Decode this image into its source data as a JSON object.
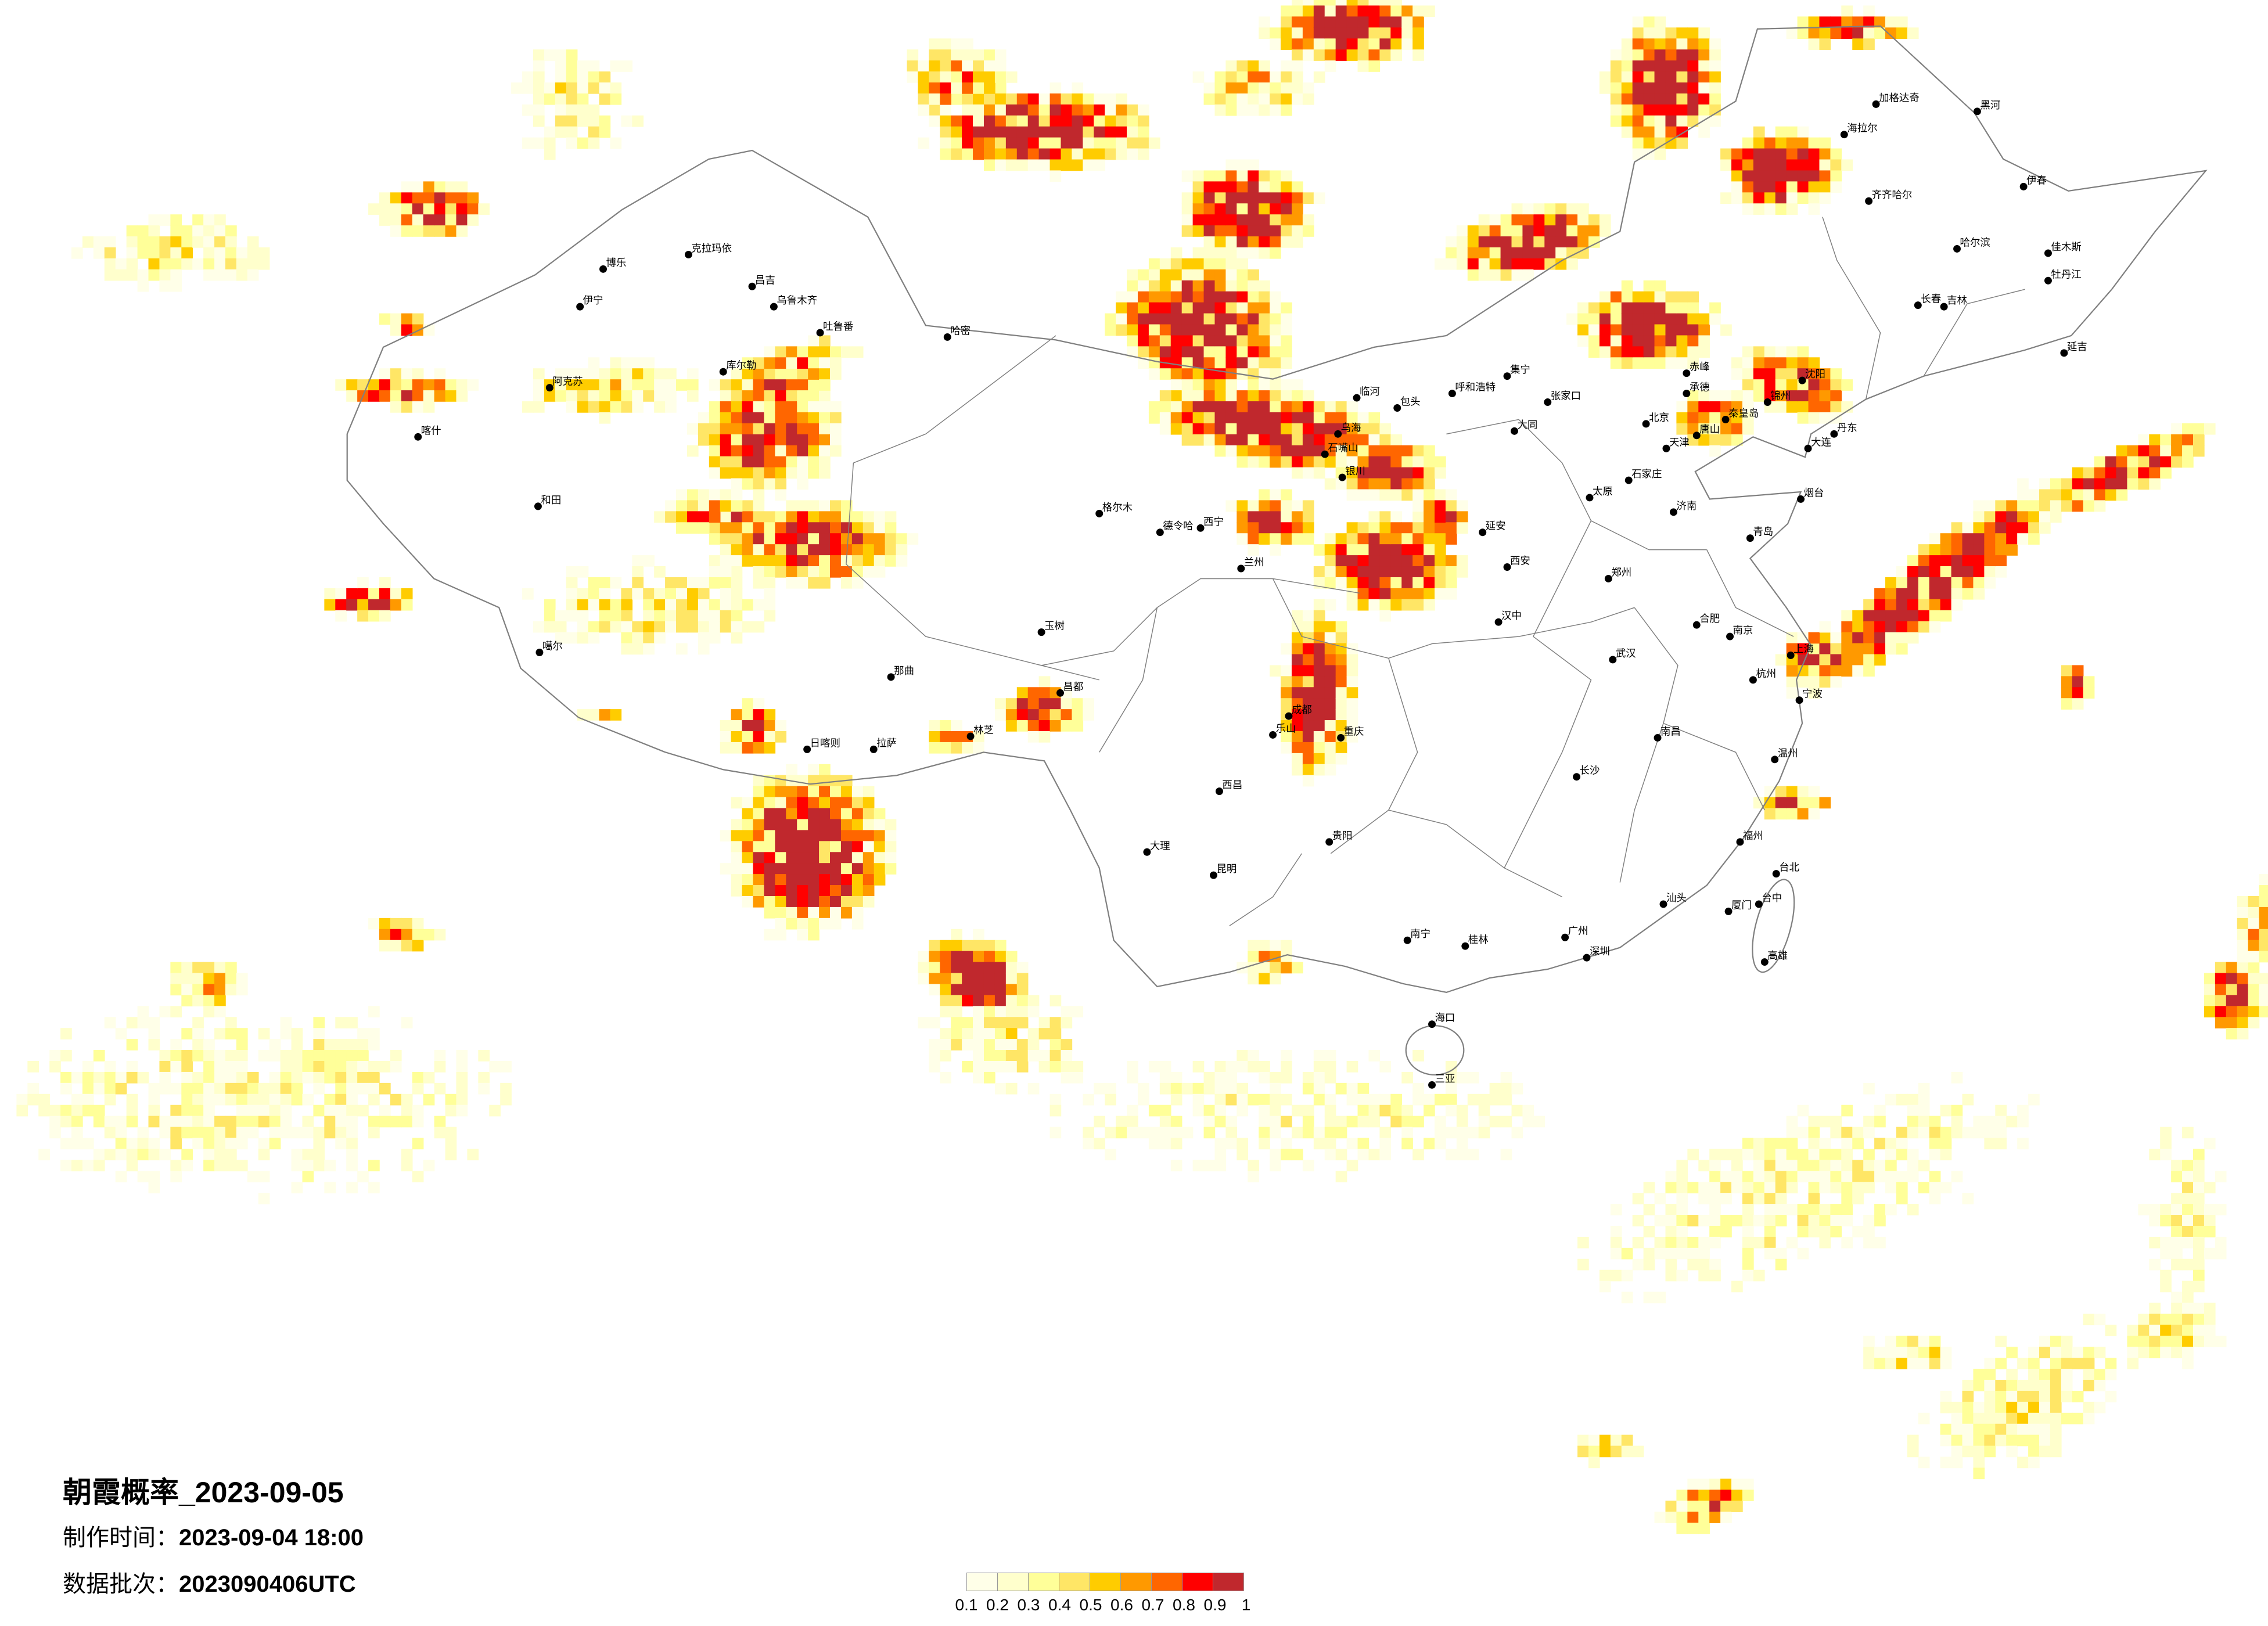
{
  "title": "朝霞概率_2023-09-05",
  "production_time": {
    "label": "制作时间：",
    "value": "2023-09-04 18:00"
  },
  "data_batch": {
    "label": "数据批次：",
    "value": "2023090406UTC"
  },
  "legend": {
    "labels": [
      "0.1",
      "0.2",
      "0.3",
      "0.4",
      "0.5",
      "0.6",
      "0.7",
      "0.8",
      "0.9",
      "1"
    ],
    "colors": [
      "#FFFFE8",
      "#FFFFCC",
      "#FFFF99",
      "#FFE666",
      "#FFCC00",
      "#FF9900",
      "#FF6600",
      "#FF0000",
      "#C0282D"
    ]
  },
  "map": {
    "boundary_color": "#808080",
    "city_marker_color": "#000000",
    "cities": [
      "博乐",
      "伊宁",
      "克拉玛依",
      "昌吉",
      "乌鲁木齐",
      "吐鲁番",
      "哈密",
      "库尔勒",
      "阿克苏",
      "喀什",
      "和田",
      "噶尔",
      "那曲",
      "拉萨",
      "日喀则",
      "林芝",
      "昌都",
      "玉树",
      "德令哈",
      "格尔木",
      "西宁",
      "兰州",
      "银川",
      "石嘴山",
      "乌海",
      "临河",
      "包头",
      "呼和浩特",
      "集宁",
      "张家口",
      "大同",
      "北京",
      "天津",
      "唐山",
      "承德",
      "秦皇岛",
      "赤峰",
      "锦州",
      "沈阳",
      "大连",
      "丹东",
      "长春",
      "吉林",
      "哈尔滨",
      "齐齐哈尔",
      "加格达奇",
      "黑河",
      "海拉尔",
      "伊春",
      "佳木斯",
      "牡丹江",
      "延吉",
      "石家庄",
      "太原",
      "济南",
      "青岛",
      "烟台",
      "郑州",
      "西安",
      "延安",
      "汉中",
      "成都",
      "重庆",
      "乐山",
      "西昌",
      "贵阳",
      "昆明",
      "大理",
      "南宁",
      "桂林",
      "长沙",
      "武汉",
      "南昌",
      "合肥",
      "南京",
      "上海",
      "杭州",
      "宁波",
      "温州",
      "福州",
      "厦门",
      "广州",
      "深圳",
      "汕头",
      "海口",
      "三亚",
      "台北",
      "台中",
      "高雄"
    ]
  }
}
